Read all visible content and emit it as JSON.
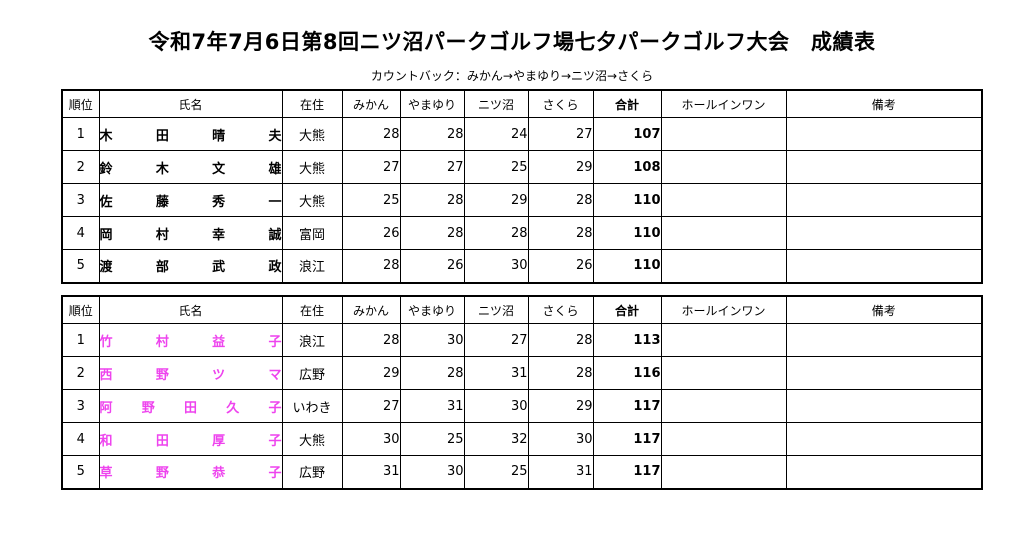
{
  "title": "令和7年7月6日第8回ニツ沼パークゴルフ場七夕パークゴルフ大会　成績表",
  "subtitle": "カウントバック：みかん→やまゆり→ニツ沼→さくら",
  "headers": [
    "順位",
    "氏名",
    "在住",
    "みかん",
    "やまゆり",
    "ニツ沼",
    "さくら",
    "合計",
    "ホールインワン",
    "備考"
  ],
  "tables": [
    {
      "division": "male",
      "rows": [
        {
          "rank": "1",
          "name": [
            "木",
            "田",
            "晴",
            "夫"
          ],
          "residence": "大熊",
          "scores": [
            "28",
            "28",
            "24",
            "27"
          ],
          "total": "107",
          "hio": "",
          "note": ""
        },
        {
          "rank": "2",
          "name": [
            "鈴",
            "木",
            "文",
            "雄"
          ],
          "residence": "大熊",
          "scores": [
            "27",
            "27",
            "25",
            "29"
          ],
          "total": "108",
          "hio": "",
          "note": ""
        },
        {
          "rank": "3",
          "name": [
            "佐",
            "藤",
            "秀",
            "一"
          ],
          "residence": "大熊",
          "scores": [
            "25",
            "28",
            "29",
            "28"
          ],
          "total": "110",
          "hio": "",
          "note": ""
        },
        {
          "rank": "4",
          "name": [
            "岡",
            "村",
            "幸",
            "誠"
          ],
          "residence": "富岡",
          "scores": [
            "26",
            "28",
            "28",
            "28"
          ],
          "total": "110",
          "hio": "",
          "note": ""
        },
        {
          "rank": "5",
          "name": [
            "渡",
            "部",
            "武",
            "政"
          ],
          "residence": "浪江",
          "scores": [
            "28",
            "26",
            "30",
            "26"
          ],
          "total": "110",
          "hio": "",
          "note": ""
        }
      ]
    },
    {
      "division": "female",
      "rows": [
        {
          "rank": "1",
          "name": [
            "竹",
            "村",
            "益",
            "子"
          ],
          "residence": "浪江",
          "scores": [
            "28",
            "30",
            "27",
            "28"
          ],
          "total": "113",
          "hio": "",
          "note": ""
        },
        {
          "rank": "2",
          "name": [
            "西",
            "野",
            "ツ",
            "マ"
          ],
          "residence": "広野",
          "scores": [
            "29",
            "28",
            "31",
            "28"
          ],
          "total": "116",
          "hio": "",
          "note": ""
        },
        {
          "rank": "3",
          "name": [
            "阿",
            "野",
            "田",
            "久",
            "子"
          ],
          "residence": "いわき",
          "scores": [
            "27",
            "31",
            "30",
            "29"
          ],
          "total": "117",
          "hio": "",
          "note": ""
        },
        {
          "rank": "4",
          "name": [
            "和",
            "田",
            "厚",
            "子"
          ],
          "residence": "大熊",
          "scores": [
            "30",
            "25",
            "32",
            "30"
          ],
          "total": "117",
          "hio": "",
          "note": ""
        },
        {
          "rank": "5",
          "name": [
            "草",
            "野",
            "恭",
            "子"
          ],
          "residence": "広野",
          "scores": [
            "31",
            "30",
            "25",
            "31"
          ],
          "total": "117",
          "hio": "",
          "note": ""
        }
      ]
    }
  ],
  "colors": {
    "female_name": "#ee44ee",
    "male_name": "#000000"
  }
}
